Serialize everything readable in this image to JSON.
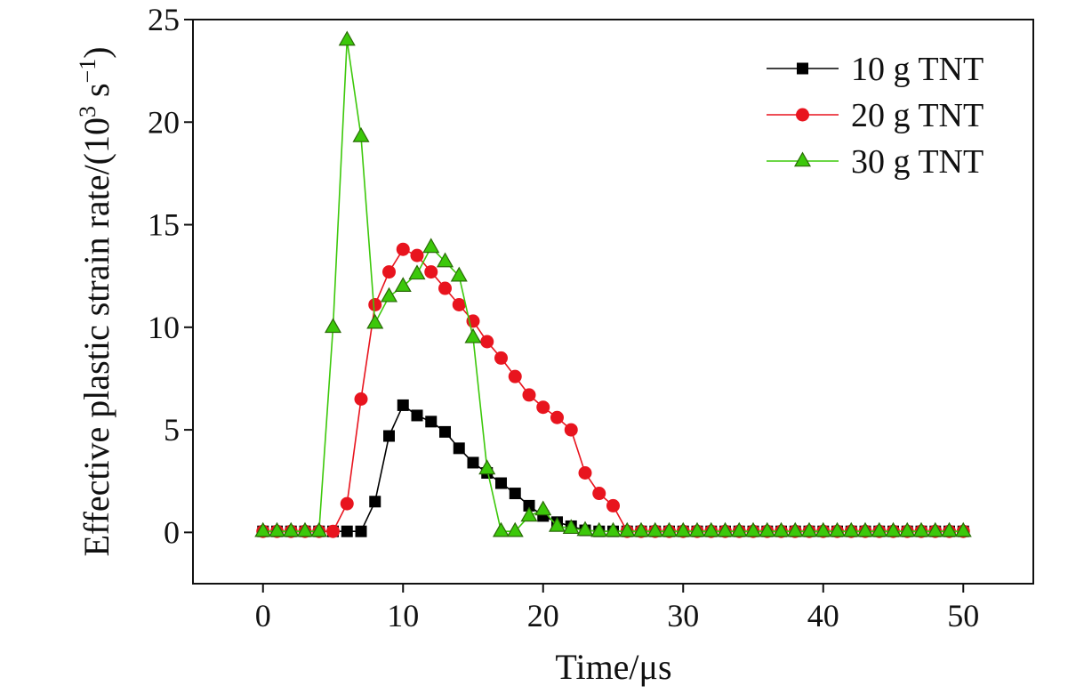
{
  "chart_data": {
    "type": "line",
    "title": "",
    "xlabel": "Time/μs",
    "ylabel_main": "Effective plastic strain rate/(10",
    "ylabel_exp": "3",
    "ylabel_mid": " s",
    "ylabel_exp2": "−1",
    "ylabel_end": ")",
    "xlim": [
      -5,
      55
    ],
    "ylim": [
      -2.5,
      25
    ],
    "xticks": [
      0,
      10,
      20,
      30,
      40,
      50
    ],
    "yticks": [
      0,
      5,
      10,
      15,
      20,
      25
    ],
    "xtick_labels": [
      "0",
      "10",
      "20",
      "30",
      "40",
      "50"
    ],
    "ytick_labels": [
      "0",
      "5",
      "10",
      "15",
      "20",
      "25"
    ],
    "legend_position": "top-right",
    "series": [
      {
        "name": "10 g TNT",
        "color": "#000000",
        "marker": "square",
        "x": [
          0,
          1,
          2,
          3,
          4,
          5,
          6,
          7,
          8,
          9,
          10,
          11,
          12,
          13,
          14,
          15,
          16,
          17,
          18,
          19,
          20,
          21,
          22,
          23,
          24,
          25,
          26,
          27,
          28,
          29,
          30,
          31,
          32,
          33,
          34,
          35,
          36,
          37,
          38,
          39,
          40,
          41,
          42,
          43,
          44,
          45,
          46,
          47,
          48,
          49,
          50
        ],
        "values": [
          0.05,
          0.05,
          0.05,
          0.05,
          0.05,
          0.05,
          0.05,
          0.05,
          1.5,
          4.7,
          6.2,
          5.7,
          5.4,
          4.9,
          4.1,
          3.4,
          2.9,
          2.4,
          1.9,
          1.3,
          0.8,
          0.5,
          0.3,
          0.1,
          0.05,
          0.05,
          0.05,
          0.05,
          0.05,
          0.05,
          0.05,
          0.05,
          0.05,
          0.05,
          0.05,
          0.05,
          0.05,
          0.05,
          0.05,
          0.05,
          0.05,
          0.05,
          0.05,
          0.05,
          0.05,
          0.05,
          0.05,
          0.05,
          0.05,
          0.05,
          0.05
        ]
      },
      {
        "name": "20 g TNT",
        "color": "#e8141e",
        "marker": "circle",
        "x": [
          0,
          1,
          2,
          3,
          4,
          5,
          6,
          7,
          8,
          9,
          10,
          11,
          12,
          13,
          14,
          15,
          16,
          17,
          18,
          19,
          20,
          21,
          22,
          23,
          24,
          25,
          26,
          27,
          28,
          29,
          30,
          31,
          32,
          33,
          34,
          35,
          36,
          37,
          38,
          39,
          40,
          41,
          42,
          43,
          44,
          45,
          46,
          47,
          48,
          49,
          50
        ],
        "values": [
          0.05,
          0.05,
          0.05,
          0.05,
          0.05,
          0.05,
          1.4,
          6.5,
          11.1,
          12.7,
          13.8,
          13.5,
          12.7,
          11.9,
          11.1,
          10.3,
          9.3,
          8.5,
          7.6,
          6.7,
          6.1,
          5.6,
          5.0,
          2.9,
          1.9,
          1.3,
          0.05,
          0.05,
          0.05,
          0.05,
          0.05,
          0.05,
          0.05,
          0.05,
          0.05,
          0.05,
          0.05,
          0.05,
          0.05,
          0.05,
          0.05,
          0.05,
          0.05,
          0.05,
          0.05,
          0.05,
          0.05,
          0.05,
          0.05,
          0.05,
          0.05
        ]
      },
      {
        "name": "30 g TNT",
        "color": "#3cc80a",
        "marker": "triangle",
        "x": [
          0,
          1,
          2,
          3,
          4,
          5,
          6,
          7,
          8,
          9,
          10,
          11,
          12,
          13,
          14,
          15,
          16,
          17,
          18,
          19,
          20,
          21,
          22,
          23,
          24,
          25,
          26,
          27,
          28,
          29,
          30,
          31,
          32,
          33,
          34,
          35,
          36,
          37,
          38,
          39,
          40,
          41,
          42,
          43,
          44,
          45,
          46,
          47,
          48,
          49,
          50
        ],
        "values": [
          0.05,
          0.05,
          0.05,
          0.05,
          0.05,
          10.0,
          24.0,
          19.3,
          10.2,
          11.5,
          12.0,
          12.6,
          13.9,
          13.2,
          12.5,
          9.5,
          3.1,
          0.05,
          0.05,
          0.8,
          1.1,
          0.3,
          0.2,
          0.1,
          0.05,
          0.05,
          0.05,
          0.05,
          0.05,
          0.05,
          0.05,
          0.05,
          0.05,
          0.05,
          0.05,
          0.05,
          0.05,
          0.05,
          0.05,
          0.05,
          0.05,
          0.05,
          0.05,
          0.05,
          0.05,
          0.05,
          0.05,
          0.05,
          0.05,
          0.05,
          0.05
        ]
      }
    ]
  }
}
